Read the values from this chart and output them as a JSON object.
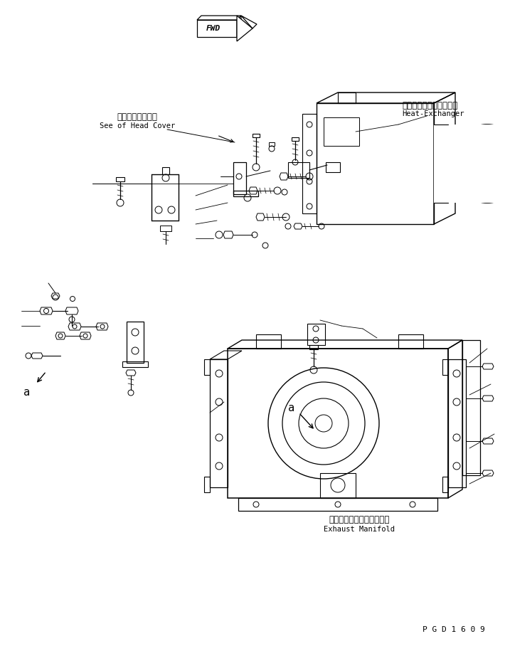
{
  "bg_color": "#ffffff",
  "line_color": "#000000",
  "fig_width": 7.17,
  "fig_height": 9.08,
  "dpi": 100,
  "labels": {
    "fwd": "FWD",
    "japanese1": "ヘッドカバー参照",
    "english1": "See of Head Cover",
    "japanese2": "ヒートエクスチェンジャ",
    "english2": "Heat-Exchanger",
    "japanese3": "エキゾーストマニホールド",
    "english3": "Exhaust Manifold",
    "pgd": "P G D 1 6 0 9",
    "a1": "a",
    "a2": "a"
  }
}
